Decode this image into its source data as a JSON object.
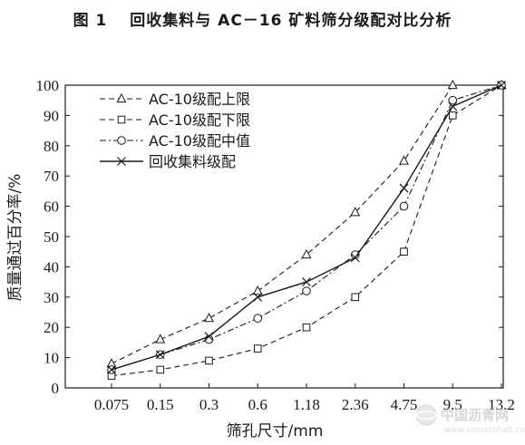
{
  "figure_title": "图 1　 回收集料与 AC－16 矿料筛分级配对比分析",
  "watermark": {
    "main": "中国沥青网",
    "sub": "www.sinoasphalt.com"
  },
  "colors": {
    "ink": "#1a1a1a",
    "background": "#ffffff"
  },
  "chart_data": {
    "type": "line",
    "title": "图 1　 回收集料与 AC－16 矿料筛分级配对比分析",
    "xlabel": "筛孔尺寸/mm",
    "ylabel": "质量通过百分率/%",
    "categories": [
      "0.075",
      "0.15",
      "0.3",
      "0.6",
      "1.18",
      "2.36",
      "4.75",
      "9.5",
      "13.2"
    ],
    "ylim": [
      0,
      100
    ],
    "yticks": [
      "0",
      "10",
      "20",
      "30",
      "40",
      "50",
      "60",
      "70",
      "80",
      "90",
      "100"
    ],
    "grid": false,
    "legend_position": "top-left",
    "series": [
      {
        "name": "AC-10级配上限",
        "marker": "triangle",
        "dash": "dashed",
        "values": [
          8,
          16,
          23,
          32,
          44,
          58,
          75,
          100,
          100
        ]
      },
      {
        "name": "AC-10级配下限",
        "marker": "square",
        "dash": "dashed",
        "values": [
          4,
          6,
          9,
          13,
          20,
          30,
          45,
          90,
          100
        ]
      },
      {
        "name": "AC-10级配中值",
        "marker": "circle",
        "dash": "dashdot",
        "values": [
          6,
          11,
          16,
          23,
          32,
          44,
          60,
          95,
          100
        ]
      },
      {
        "name": "回收集料级配",
        "marker": "cross",
        "dash": "solid",
        "values": [
          6,
          11,
          17,
          30,
          35,
          43,
          66,
          93,
          100
        ]
      }
    ]
  }
}
